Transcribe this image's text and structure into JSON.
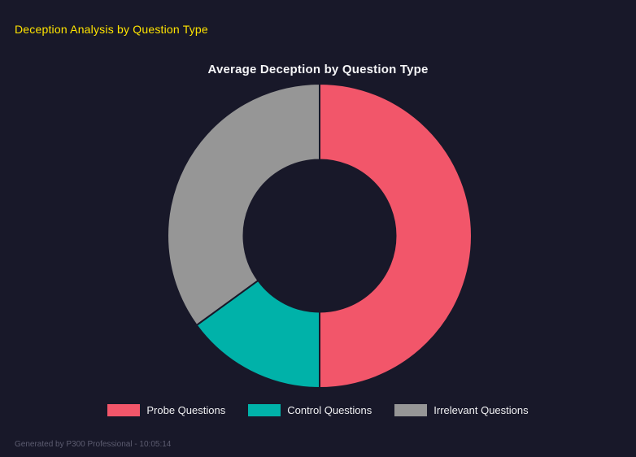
{
  "page": {
    "title": "Deception Analysis by Question Type",
    "footer": "Generated by P300 Professional - 10:05:14",
    "accent_color": "#ffe400",
    "background_color": "#181829",
    "text_color": "#f0f0f2"
  },
  "chart_data": {
    "type": "pie",
    "subtype": "donut",
    "title": "Average Deception by Question Type",
    "categories": [
      "Probe Questions",
      "Control Questions",
      "Irrelevant Questions"
    ],
    "values": [
      50,
      15,
      35
    ],
    "colors": [
      "#f2566a",
      "#00b2a9",
      "#969696"
    ],
    "start_angle_deg": 0,
    "direction": "clockwise",
    "inner_radius_ratio": 0.5,
    "legend_position": "bottom",
    "grid": false
  }
}
